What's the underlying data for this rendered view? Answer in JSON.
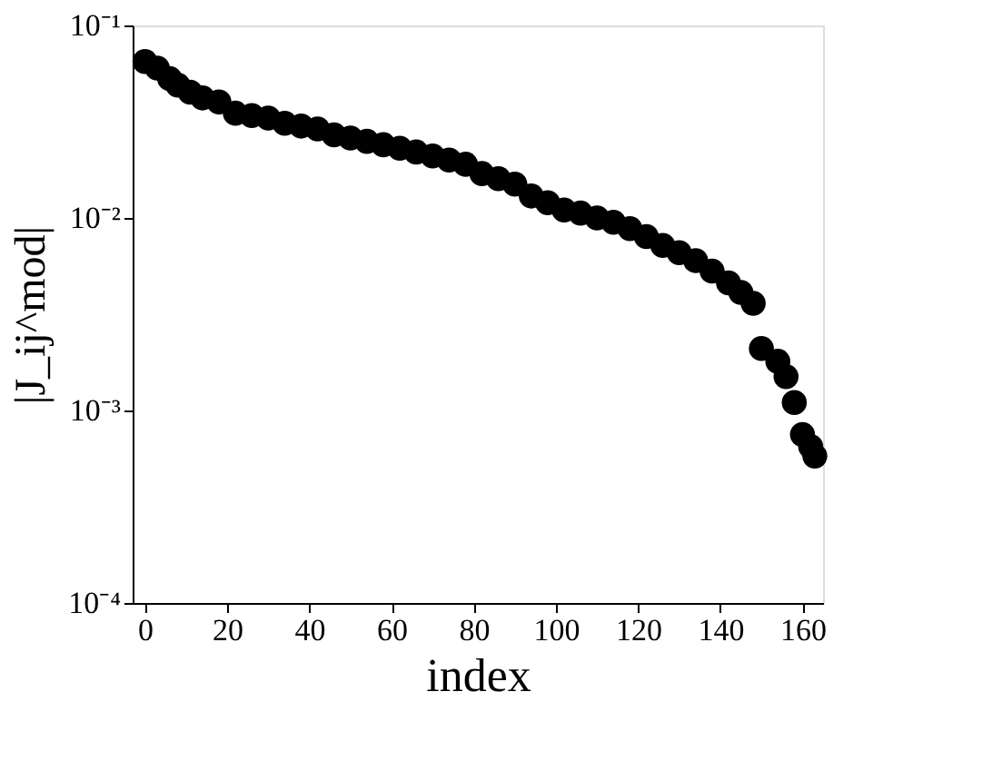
{
  "chart_data": {
    "type": "scatter",
    "xlabel": "index",
    "ylabel": "|J_ij^mod|",
    "x": [
      0,
      3,
      6,
      8,
      11,
      14,
      18,
      22,
      26,
      30,
      34,
      38,
      42,
      46,
      50,
      54,
      58,
      62,
      66,
      70,
      74,
      78,
      82,
      86,
      90,
      94,
      98,
      102,
      106,
      110,
      114,
      118,
      122,
      126,
      130,
      134,
      138,
      142,
      145,
      148,
      150,
      154,
      156,
      158,
      160,
      162,
      163
    ],
    "series": [
      {
        "color": "#000000",
        "values": [
          0.065,
          0.06,
          0.053,
          0.049,
          0.045,
          0.042,
          0.04,
          0.035,
          0.034,
          0.033,
          0.031,
          0.03,
          0.029,
          0.027,
          0.026,
          0.025,
          0.024,
          0.023,
          0.022,
          0.021,
          0.02,
          0.019,
          0.017,
          0.016,
          0.015,
          0.013,
          0.012,
          0.011,
          0.0106,
          0.01,
          0.0095,
          0.0088,
          0.008,
          0.0072,
          0.0066,
          0.006,
          0.0053,
          0.0046,
          0.0041,
          0.0036,
          0.0021,
          0.0018,
          0.0015,
          0.0011,
          0.00075,
          0.00065,
          0.00058
        ]
      }
    ],
    "marker": "circle",
    "log": "y",
    "grid": false,
    "legend": false,
    "xlim": [
      -3,
      165
    ],
    "xticks": [
      0,
      20,
      40,
      60,
      80,
      100,
      120,
      140,
      160
    ],
    "ylim": [
      0.0001,
      0.1
    ],
    "yticks": [
      {
        "value": 0.0001,
        "label": "10⁻⁴"
      },
      {
        "value": 0.001,
        "label": "10⁻³"
      },
      {
        "value": 0.01,
        "label": "10⁻²"
      },
      {
        "value": 0.1,
        "label": "10⁻¹"
      }
    ]
  }
}
